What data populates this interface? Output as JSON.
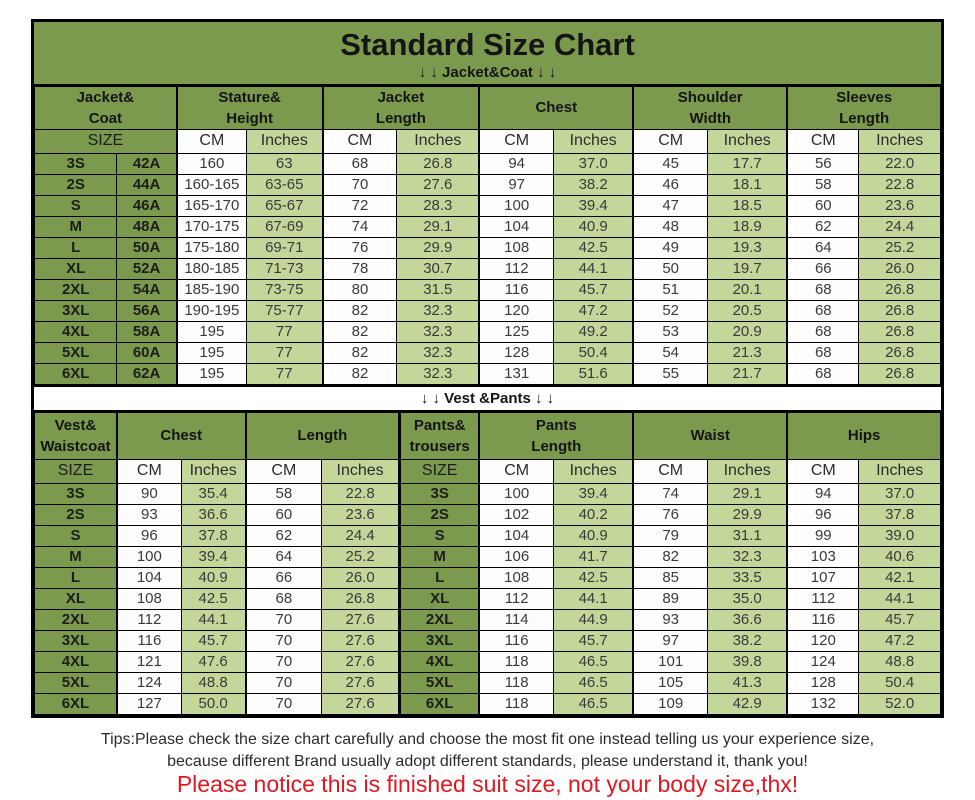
{
  "title": "Standard Size Chart",
  "jacket_section_label": "↓ ↓  Jacket&Coat ↓ ↓",
  "vest_section_label": "↓ ↓  Vest &Pants ↓ ↓",
  "labels": {
    "size": "SIZE",
    "cm": "CM",
    "inches": "Inches"
  },
  "jacket_table": {
    "groups": [
      "Jacket&\nCoat",
      "Stature&\nHeight",
      "Jacket\nLength",
      "Chest",
      "Shoulder\nWidth",
      "Sleeves\nLength"
    ],
    "rows": [
      [
        "3S",
        "42A",
        "160",
        "63",
        "68",
        "26.8",
        "94",
        "37.0",
        "45",
        "17.7",
        "56",
        "22.0"
      ],
      [
        "2S",
        "44A",
        "160-165",
        "63-65",
        "70",
        "27.6",
        "97",
        "38.2",
        "46",
        "18.1",
        "58",
        "22.8"
      ],
      [
        "S",
        "46A",
        "165-170",
        "65-67",
        "72",
        "28.3",
        "100",
        "39.4",
        "47",
        "18.5",
        "60",
        "23.6"
      ],
      [
        "M",
        "48A",
        "170-175",
        "67-69",
        "74",
        "29.1",
        "104",
        "40.9",
        "48",
        "18.9",
        "62",
        "24.4"
      ],
      [
        "L",
        "50A",
        "175-180",
        "69-71",
        "76",
        "29.9",
        "108",
        "42.5",
        "49",
        "19.3",
        "64",
        "25.2"
      ],
      [
        "XL",
        "52A",
        "180-185",
        "71-73",
        "78",
        "30.7",
        "112",
        "44.1",
        "50",
        "19.7",
        "66",
        "26.0"
      ],
      [
        "2XL",
        "54A",
        "185-190",
        "73-75",
        "80",
        "31.5",
        "116",
        "45.7",
        "51",
        "20.1",
        "68",
        "26.8"
      ],
      [
        "3XL",
        "56A",
        "190-195",
        "75-77",
        "82",
        "32.3",
        "120",
        "47.2",
        "52",
        "20.5",
        "68",
        "26.8"
      ],
      [
        "4XL",
        "58A",
        "195",
        "77",
        "82",
        "32.3",
        "125",
        "49.2",
        "53",
        "20.9",
        "68",
        "26.8"
      ],
      [
        "5XL",
        "60A",
        "195",
        "77",
        "82",
        "32.3",
        "128",
        "50.4",
        "54",
        "21.3",
        "68",
        "26.8"
      ],
      [
        "6XL",
        "62A",
        "195",
        "77",
        "82",
        "32.3",
        "131",
        "51.6",
        "55",
        "21.7",
        "68",
        "26.8"
      ]
    ]
  },
  "vest_table": {
    "groups": [
      "Vest&\nWaistcoat",
      "Chest",
      "Length",
      "Pants&\ntrousers",
      "Pants\nLength",
      "Waist",
      "Hips"
    ],
    "rows": [
      [
        "3S",
        "90",
        "35.4",
        "58",
        "22.8",
        "3S",
        "100",
        "39.4",
        "74",
        "29.1",
        "94",
        "37.0"
      ],
      [
        "2S",
        "93",
        "36.6",
        "60",
        "23.6",
        "2S",
        "102",
        "40.2",
        "76",
        "29.9",
        "96",
        "37.8"
      ],
      [
        "S",
        "96",
        "37.8",
        "62",
        "24.4",
        "S",
        "104",
        "40.9",
        "79",
        "31.1",
        "99",
        "39.0"
      ],
      [
        "M",
        "100",
        "39.4",
        "64",
        "25.2",
        "M",
        "106",
        "41.7",
        "82",
        "32.3",
        "103",
        "40.6"
      ],
      [
        "L",
        "104",
        "40.9",
        "66",
        "26.0",
        "L",
        "108",
        "42.5",
        "85",
        "33.5",
        "107",
        "42.1"
      ],
      [
        "XL",
        "108",
        "42.5",
        "68",
        "26.8",
        "XL",
        "112",
        "44.1",
        "89",
        "35.0",
        "112",
        "44.1"
      ],
      [
        "2XL",
        "112",
        "44.1",
        "70",
        "27.6",
        "2XL",
        "114",
        "44.9",
        "93",
        "36.6",
        "116",
        "45.7"
      ],
      [
        "3XL",
        "116",
        "45.7",
        "70",
        "27.6",
        "3XL",
        "116",
        "45.7",
        "97",
        "38.2",
        "120",
        "47.2"
      ],
      [
        "4XL",
        "121",
        "47.6",
        "70",
        "27.6",
        "4XL",
        "118",
        "46.5",
        "101",
        "39.8",
        "124",
        "48.8"
      ],
      [
        "5XL",
        "124",
        "48.8",
        "70",
        "27.6",
        "5XL",
        "118",
        "46.5",
        "105",
        "41.3",
        "128",
        "50.4"
      ],
      [
        "6XL",
        "127",
        "50.0",
        "70",
        "27.6",
        "6XL",
        "118",
        "46.5",
        "109",
        "42.9",
        "132",
        "52.0"
      ]
    ]
  },
  "footer": {
    "tips_line1": "Tips:Please check the size chart carefully and choose the most fit one instead telling us your experience size,",
    "tips_line2": "because different Brand usually adopt different standards, please understand it, thank you!",
    "notice": "Please notice this is finished suit size, not your body size,thx!"
  },
  "colors": {
    "dark_green": "#7b9a4d",
    "light_green": "#c4d79b",
    "notice_red": "#df1820"
  }
}
